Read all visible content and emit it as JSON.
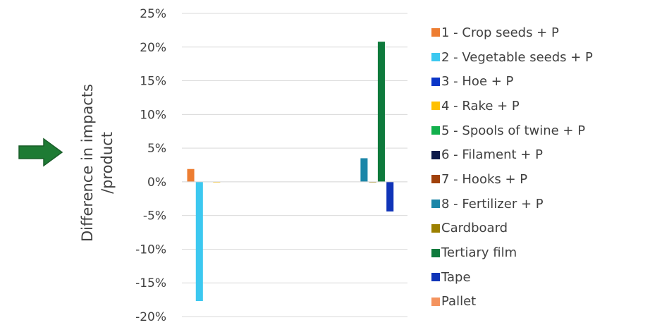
{
  "chart_data": {
    "type": "bar",
    "ylabel": [
      "Difference in impacts",
      "/product"
    ],
    "y_ticks": [
      "25%",
      "20%",
      "15%",
      "10%",
      "5%",
      "0%",
      "-5%",
      "-10%",
      "-15%",
      "-20%"
    ],
    "ylim": [
      -20,
      25
    ],
    "grid": true,
    "legend_position": "right",
    "categories": [
      "",
      ""
    ],
    "series": [
      {
        "name": "1 - Crop seeds + P",
        "color": "#ED7D31",
        "values": [
          1.9,
          0
        ]
      },
      {
        "name": "2 - Vegetable seeds + P",
        "color": "#3CC8F0",
        "values": [
          -17.7,
          0
        ]
      },
      {
        "name": "3 - Hoe + P",
        "color": "#0B36C8",
        "values": [
          0,
          0
        ]
      },
      {
        "name": "4 - Rake + P",
        "color": "#FFC000",
        "values": [
          -0.1,
          0
        ]
      },
      {
        "name": "5 - Spools of twine + P",
        "color": "#12B04C",
        "values": [
          0,
          0
        ]
      },
      {
        "name": "6 - Filament + P",
        "color": "#0D1A4A",
        "values": [
          0,
          0
        ]
      },
      {
        "name": "7 - Hooks + P",
        "color": "#A0400A",
        "values": [
          0,
          0
        ]
      },
      {
        "name": "8 - Fertilizer + P",
        "color": "#1B86A8",
        "values": [
          0,
          3.5
        ]
      },
      {
        "name": "Cardboard",
        "color": "#9C8000",
        "values": [
          0,
          -0.1
        ]
      },
      {
        "name": "Tertiary film",
        "color": "#0E7A3C",
        "values": [
          0,
          20.8
        ]
      },
      {
        "name": "Tape",
        "color": "#1034B8",
        "values": [
          0,
          -4.4
        ]
      },
      {
        "name": "Pallet",
        "color": "#F4935E",
        "values": [
          0,
          0
        ]
      }
    ],
    "annotation_arrow_color": "#1E7B34"
  }
}
